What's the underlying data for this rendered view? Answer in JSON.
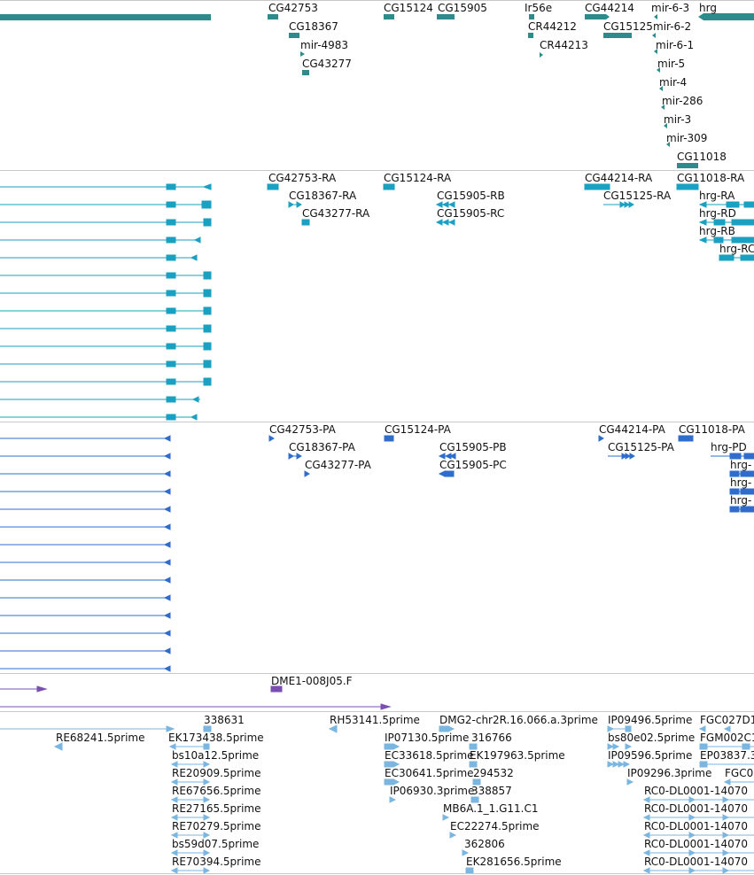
{
  "colors": {
    "gene": "#2e8b8b",
    "transcript": "#1aa0c0",
    "protein": "#2e6dcc",
    "clone": "#7a4fb0",
    "est": "#7ab6e0",
    "separator": "#c8c8c8"
  },
  "tracks": {
    "genes": {
      "labels": [
        "CG42753",
        "CG15124",
        "CG15905",
        "Ir56e",
        "CG44214",
        "mir-6-3",
        "hrg",
        "CG18367",
        "CR44212",
        "CG15125",
        "mir-6-2",
        "mir-4983",
        "CR44213",
        "mir-6-1",
        "CG43277",
        "mir-5",
        "mir-4",
        "mir-286",
        "mir-3",
        "mir-309",
        "CG11018"
      ]
    },
    "transcripts": {
      "labels": [
        "CG42753-RA",
        "CG15124-RA",
        "CG44214-RA",
        "CG11018-RA",
        "CG18367-RA",
        "CG15905-RB",
        "CG15125-RA",
        "hrg-RA",
        "CG43277-RA",
        "CG15905-RC",
        "hrg-RD",
        "hrg-RB",
        "hrg-RC"
      ]
    },
    "proteins": {
      "labels": [
        "CG42753-PA",
        "CG15124-PA",
        "CG44214-PA",
        "CG11018-PA",
        "CG18367-PA",
        "CG15905-PB",
        "CG15125-PA",
        "hrg-PD",
        "CG43277-PA",
        "CG15905-PC",
        "hrg-",
        "hrg-",
        "hrg-"
      ]
    },
    "clones": {
      "labels": [
        "DME1-008J05.F"
      ]
    },
    "ests": {
      "labels": [
        "338631",
        "RH53141.5prime",
        "DMG2-chr2R.16.066.a.3prime",
        "IP09496.5prime",
        "FGC027D1",
        "RE68241.5prime",
        "EK173438.5prime",
        "IP07130.5prime",
        "316766",
        "bs80e02.5prime",
        "FGM002C1",
        "bs10a12.5prime",
        "EC33618.5prime",
        "EK197963.5prime",
        "IP09596.5prime",
        "EP03837.3",
        "RE20909.5prime",
        "EC30641.5prime",
        "294532",
        "IP09296.3prime",
        "FGC0",
        "RE67656.5prime",
        "IP06930.3prime",
        "338857",
        "RC0-DL0001-14070",
        "RE27165.5prime",
        "MB6A.1_1.G11.C1",
        "RC0-DL0001-14070",
        "RE70279.5prime",
        "EC22274.5prime",
        "RC0-DL0001-14070",
        "bs59d07.5prime",
        "362806",
        "RC0-DL0001-14070",
        "RE70394.5prime",
        "EK281656.5prime",
        "RC0-DL0001-14070"
      ]
    }
  }
}
